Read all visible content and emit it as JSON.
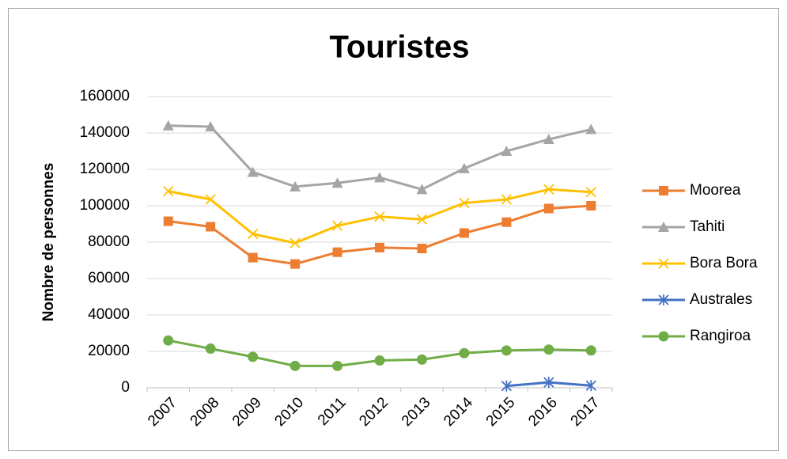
{
  "chart_data": {
    "type": "line",
    "title": "Touristes",
    "y_label": "Nombre de personnes",
    "categories": [
      "2007",
      "2008",
      "2009",
      "2010",
      "2011",
      "2012",
      "2013",
      "2014",
      "2015",
      "2016",
      "2017"
    ],
    "ylim": [
      0,
      160000
    ],
    "yticks": [
      0,
      20000,
      40000,
      60000,
      80000,
      100000,
      120000,
      140000,
      160000
    ],
    "grid": true,
    "legend": "right",
    "series": [
      {
        "name": "Moorea",
        "color": "#ED7D31",
        "marker": "square",
        "values": [
          91500,
          88500,
          71500,
          68000,
          74500,
          77000,
          76500,
          85000,
          91000,
          98500,
          100000
        ]
      },
      {
        "name": "Tahiti",
        "color": "#A5A5A5",
        "marker": "triangle",
        "values": [
          144000,
          143500,
          118500,
          110500,
          112500,
          115500,
          109000,
          120500,
          130000,
          136500,
          142000
        ]
      },
      {
        "name": "Bora Bora",
        "color": "#FFC000",
        "marker": "x",
        "values": [
          108000,
          103500,
          84500,
          79500,
          89000,
          94000,
          92500,
          101500,
          103500,
          109000,
          107500
        ]
      },
      {
        "name": "Australes",
        "color": "#4472C4",
        "marker": "star",
        "values": [
          null,
          null,
          null,
          null,
          null,
          null,
          null,
          null,
          1000,
          3000,
          1200
        ]
      },
      {
        "name": "Rangiroa",
        "color": "#70AD47",
        "marker": "circle",
        "values": [
          26000,
          21500,
          17000,
          12000,
          12000,
          15000,
          15500,
          19000,
          20500,
          21000,
          20500
        ]
      }
    ]
  }
}
